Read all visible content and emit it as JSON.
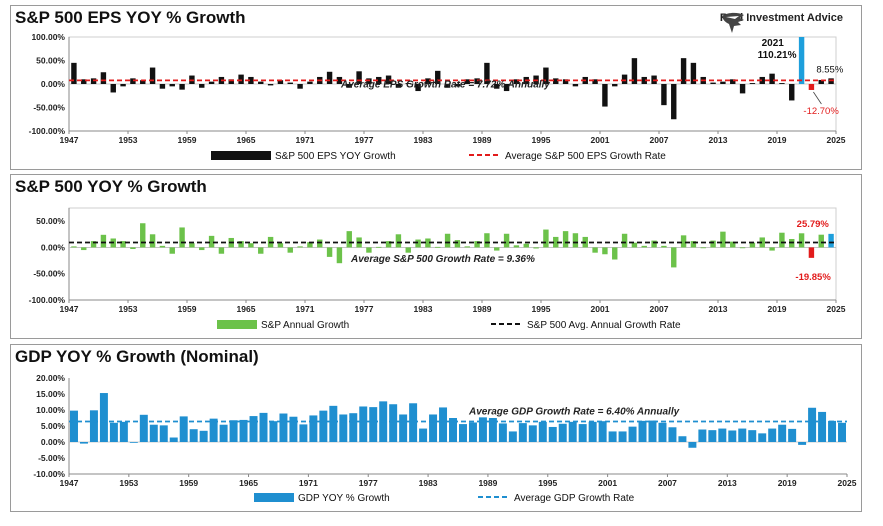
{
  "brand": {
    "name": "Real Investment Advice"
  },
  "chart_data": [
    {
      "type": "bar",
      "title": "S&P 500 EPS YOY % Growth",
      "x": [
        1947,
        1948,
        1949,
        1950,
        1951,
        1952,
        1953,
        1954,
        1955,
        1956,
        1957,
        1958,
        1959,
        1960,
        1961,
        1962,
        1963,
        1964,
        1965,
        1966,
        1967,
        1968,
        1969,
        1970,
        1971,
        1972,
        1973,
        1974,
        1975,
        1976,
        1977,
        1978,
        1979,
        1980,
        1981,
        1982,
        1983,
        1984,
        1985,
        1986,
        1987,
        1988,
        1989,
        1990,
        1991,
        1992,
        1993,
        1994,
        1995,
        1996,
        1997,
        1998,
        1999,
        2000,
        2001,
        2002,
        2003,
        2004,
        2005,
        2006,
        2007,
        2008,
        2009,
        2010,
        2011,
        2012,
        2013,
        2014,
        2015,
        2016,
        2017,
        2018,
        2019,
        2020,
        2021,
        2022,
        2023,
        2024
      ],
      "x_ticks": [
        "1947",
        "1953",
        "1959",
        "1965",
        "1971",
        "1977",
        "1983",
        "1989",
        "1995",
        "2001",
        "2007",
        "2013",
        "2019",
        "2025"
      ],
      "y_ticks": [
        "100.00%",
        "50.00%",
        "0.00%",
        "-50.00%",
        "-100.00%"
      ],
      "ylim": [
        -100,
        100
      ],
      "series": [
        {
          "name": "S&P 500 EPS YOY Growth",
          "color": "#111111",
          "values": [
            45,
            10,
            12,
            25,
            -18,
            -5,
            12,
            8,
            35,
            -10,
            -5,
            -12,
            18,
            -8,
            5,
            15,
            10,
            20,
            15,
            5,
            -3,
            8,
            3,
            -10,
            5,
            15,
            26,
            15,
            -8,
            27,
            12,
            15,
            18,
            -8,
            2,
            -15,
            12,
            28,
            -8,
            -5,
            10,
            12,
            45,
            -10,
            -15,
            10,
            15,
            18,
            35,
            12,
            10,
            -5,
            15,
            10,
            -48,
            -5,
            20,
            55,
            15,
            18,
            -45,
            -75,
            55,
            45,
            15,
            3,
            5,
            10,
            -20,
            2,
            15,
            22,
            2,
            -35,
            110.21,
            -12.7,
            8.55,
            12
          ]
        },
        {
          "name": "Average S&P 500 EPS Growth Rate",
          "color": "#e21b1b",
          "value": 7.72
        }
      ],
      "highlight_colors": {
        "2021": "#1e9fdc",
        "2022": "#e21b1b"
      },
      "annotations": {
        "average": "Average EPS Growth Rate = 7.72% Annually",
        "peak_year": "2021",
        "peak_value": "110.21%",
        "low_value": "-12.70%",
        "last_value": "8.55%"
      }
    },
    {
      "type": "bar",
      "title": "S&P 500 YOY % Growth",
      "x": [
        1947,
        1948,
        1949,
        1950,
        1951,
        1952,
        1953,
        1954,
        1955,
        1956,
        1957,
        1958,
        1959,
        1960,
        1961,
        1962,
        1963,
        1964,
        1965,
        1966,
        1967,
        1968,
        1969,
        1970,
        1971,
        1972,
        1973,
        1974,
        1975,
        1976,
        1977,
        1978,
        1979,
        1980,
        1981,
        1982,
        1983,
        1984,
        1985,
        1986,
        1987,
        1988,
        1989,
        1990,
        1991,
        1992,
        1993,
        1994,
        1995,
        1996,
        1997,
        1998,
        1999,
        2000,
        2001,
        2002,
        2003,
        2004,
        2005,
        2006,
        2007,
        2008,
        2009,
        2010,
        2011,
        2012,
        2013,
        2014,
        2015,
        2016,
        2017,
        2018,
        2019,
        2020,
        2021,
        2022,
        2023,
        2024
      ],
      "x_ticks": [
        "1947",
        "1953",
        "1959",
        "1965",
        "1971",
        "1977",
        "1983",
        "1989",
        "1995",
        "2001",
        "2007",
        "2013",
        "2019",
        "2025"
      ],
      "y_ticks": [
        "50.00%",
        "0.00%",
        "-50.00%",
        "-100.00%"
      ],
      "ylim": [
        -100,
        75
      ],
      "series": [
        {
          "name": "S&P Annual Growth",
          "color": "#6cc24a",
          "values": [
            2,
            -5,
            12,
            24,
            17,
            12,
            -3,
            46,
            25,
            3,
            -12,
            38,
            8,
            -5,
            22,
            -12,
            18,
            12,
            8,
            -12,
            20,
            8,
            -10,
            2,
            10,
            15,
            -18,
            -30,
            31,
            19,
            -10,
            1,
            12,
            25,
            -10,
            15,
            17,
            1,
            26,
            14,
            2,
            12,
            27,
            -6,
            26,
            4,
            7,
            -2,
            34,
            20,
            31,
            27,
            20,
            -10,
            -13,
            -23,
            26,
            9,
            3,
            13,
            3,
            -38,
            23,
            12,
            0,
            13,
            30,
            11,
            -1,
            9,
            19,
            -6,
            28,
            16,
            26.89,
            -19.85,
            24.23,
            25.79
          ]
        },
        {
          "name": "S&P 500 Avg. Annual Growth Rate",
          "color": "#111111",
          "value": 9.36
        }
      ],
      "highlight_colors": {
        "2022": "#e21b1b",
        "2024": "#1e9fdc"
      },
      "annotations": {
        "average": "Average S&P 500 Growth Rate = 9.36%",
        "low_value": "-19.85%",
        "last_value": "25.79%"
      }
    },
    {
      "type": "bar",
      "title": "GDP YOY % Growth (Nominal)",
      "x": [
        1947,
        1948,
        1949,
        1950,
        1951,
        1952,
        1953,
        1954,
        1955,
        1956,
        1957,
        1958,
        1959,
        1960,
        1961,
        1962,
        1963,
        1964,
        1965,
        1966,
        1967,
        1968,
        1969,
        1970,
        1971,
        1972,
        1973,
        1974,
        1975,
        1976,
        1977,
        1978,
        1979,
        1980,
        1981,
        1982,
        1983,
        1984,
        1985,
        1986,
        1987,
        1988,
        1989,
        1990,
        1991,
        1992,
        1993,
        1994,
        1995,
        1996,
        1997,
        1998,
        1999,
        2000,
        2001,
        2002,
        2003,
        2004,
        2005,
        2006,
        2007,
        2008,
        2009,
        2010,
        2011,
        2012,
        2013,
        2014,
        2015,
        2016,
        2017,
        2018,
        2019,
        2020,
        2021,
        2022,
        2023,
        2024
      ],
      "x_ticks": [
        "1947",
        "1953",
        "1959",
        "1965",
        "1971",
        "1977",
        "1983",
        "1989",
        "1995",
        "2001",
        "2007",
        "2013",
        "2019",
        "2025"
      ],
      "y_ticks": [
        "20.00%",
        "15.00%",
        "10.00%",
        "5.00%",
        "0.00%",
        "-5.00%",
        "-10.00%"
      ],
      "ylim": [
        -10,
        20
      ],
      "series": [
        {
          "name": "GDP YOY % Growth",
          "color": "#1f8fd0",
          "values": [
            9.8,
            -0.5,
            9.9,
            15.3,
            6.0,
            6.3,
            0,
            8.5,
            5.4,
            5.2,
            1.4,
            8.0,
            4.0,
            3.5,
            7.3,
            5.4,
            6.8,
            6.9,
            8.1,
            9.1,
            6.5,
            8.9,
            7.9,
            5.5,
            8.3,
            9.8,
            11.3,
            8.6,
            9.0,
            11.1,
            10.9,
            12.7,
            11.8,
            8.6,
            12.1,
            4.2,
            8.6,
            10.8,
            7.5,
            5.6,
            6.1,
            7.7,
            7.5,
            5.8,
            3.3,
            5.9,
            5.2,
            6.3,
            4.7,
            5.7,
            6.3,
            5.6,
            6.3,
            6.5,
            3.3,
            3.3,
            4.8,
            6.6,
            6.7,
            6.0,
            4.6,
            1.8,
            -1.8,
            3.9,
            3.7,
            4.2,
            3.6,
            4.2,
            3.7,
            2.7,
            4.2,
            5.4,
            4.1,
            -0.9,
            10.7,
            9.4,
            6.6,
            6.0
          ]
        },
        {
          "name": "Average GDP Growth Rate",
          "color": "#1f8fd0",
          "value": 6.4
        }
      ],
      "annotations": {
        "average": "Average GDP Growth Rate = 6.40% Annually"
      }
    }
  ]
}
